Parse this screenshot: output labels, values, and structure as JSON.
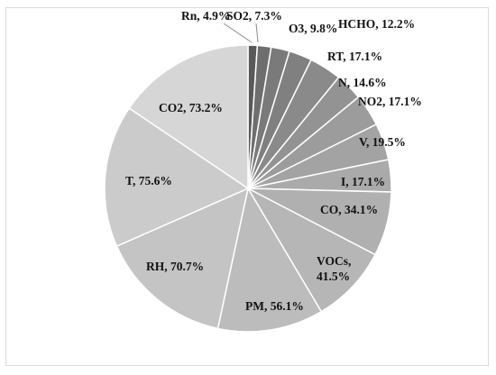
{
  "chart_data": {
    "type": "pie",
    "title": "",
    "slices": [
      {
        "label": "Rn, 4.9%",
        "name": "Rn",
        "value": 4.9,
        "color": "#595959"
      },
      {
        "label": "SO2, 7.3%",
        "name": "SO2",
        "value": 7.3,
        "color": "#6e6e6e"
      },
      {
        "label": "O3, 9.8%",
        "name": "O3",
        "value": 9.8,
        "color": "#7a7a7a"
      },
      {
        "label": "HCHO, 12.2%",
        "name": "HCHO",
        "value": 12.2,
        "color": "#808080"
      },
      {
        "label": "RT, 17.1%",
        "name": "RT",
        "value": 17.1,
        "color": "#8a8a8a"
      },
      {
        "label": "N, 14.6%",
        "name": "N",
        "value": 14.6,
        "color": "#939393"
      },
      {
        "label": "NO2, 17.1%",
        "name": "NO2",
        "value": 17.1,
        "color": "#9c9c9c"
      },
      {
        "label": "V, 19.5%",
        "name": "V",
        "value": 19.5,
        "color": "#a3a3a3"
      },
      {
        "label": "I, 17.1%",
        "name": "I",
        "value": 17.1,
        "color": "#aaaaaa"
      },
      {
        "label": "CO, 34.1%",
        "name": "CO",
        "value": 34.1,
        "color": "#b0b0b0"
      },
      {
        "label": "VOCs,\n41.5%",
        "name": "VOCs",
        "value": 41.5,
        "color": "#b6b6b6"
      },
      {
        "label": "PM, 56.1%",
        "name": "PM",
        "value": 56.1,
        "color": "#bcbcbc"
      },
      {
        "label": "RH, 70.7%",
        "name": "RH",
        "value": 70.7,
        "color": "#c4c4c4"
      },
      {
        "label": "T, 75.6%",
        "name": "T",
        "value": 75.6,
        "color": "#cbcbcb"
      },
      {
        "label": "CO2, 73.2%",
        "name": "CO2",
        "value": 73.2,
        "color": "#d6d6d6"
      }
    ],
    "start_angle": "12 o'clock",
    "direction": "clockwise",
    "legend": "none",
    "border_color": "#ffffff"
  }
}
